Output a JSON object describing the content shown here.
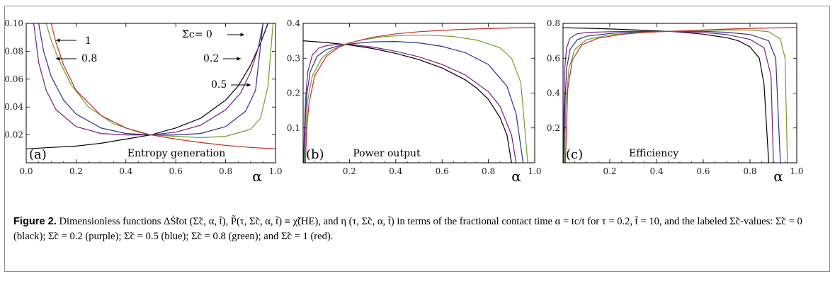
{
  "caption": {
    "label": "Figure 2.",
    "text": "Dimensionless functions ΔṠ̃tot (Σ̃c, α, t̃), P̃(τ, Σ̃c, α, t̃) ≡ χ̃(HE), and η (τ, Σ̃c, α, t̃) in terms of the fractional contact time α = tc/t for τ = 0.2, t̃ = 10, and the labeled Σ̃c-values: Σ̃c = 0 (black); Σ̃c = 0.2 (purple); Σ̃c = 0.5 (blue); Σ̃c = 0.8 (green); and Σ̃c = 1 (red)."
  },
  "colors": {
    "0": "#000000",
    "0.2": "#7a1f78",
    "0.5": "#2f2f8f",
    "0.8": "#6f9f2a",
    "1": "#c0302a"
  },
  "chart_data": [
    {
      "type": "line",
      "panel": "(a)",
      "title": "Entropy generation",
      "xlabel": "α",
      "xlim": [
        0,
        1
      ],
      "ylim": [
        0,
        0.1
      ],
      "xticks": [
        "0.0",
        "0.2",
        "0.4",
        "0.6",
        "0.8",
        "1.0"
      ],
      "yticks": [
        "0.02",
        "0.04",
        "0.06",
        "0.08",
        "0.10"
      ],
      "annotations": [
        "1",
        "0.8",
        "Σ̃c= 0",
        "0.2",
        "0.5"
      ],
      "series": [
        {
          "sigma": "0",
          "x": [
            0,
            0.1,
            0.2,
            0.3,
            0.4,
            0.5,
            0.6,
            0.7,
            0.8,
            0.85,
            0.9,
            0.94,
            0.97
          ],
          "y": [
            0.01,
            0.011,
            0.012,
            0.014,
            0.017,
            0.02,
            0.025,
            0.032,
            0.045,
            0.055,
            0.07,
            0.086,
            0.1
          ]
        },
        {
          "sigma": "0.2",
          "x": [
            0.03,
            0.05,
            0.08,
            0.12,
            0.2,
            0.3,
            0.4,
            0.5,
            0.6,
            0.7,
            0.8,
            0.86,
            0.9,
            0.93,
            0.95
          ],
          "y": [
            0.1,
            0.072,
            0.052,
            0.038,
            0.026,
            0.021,
            0.02,
            0.02,
            0.022,
            0.027,
            0.038,
            0.05,
            0.065,
            0.082,
            0.1
          ]
        },
        {
          "sigma": "0.5",
          "x": [
            0.05,
            0.07,
            0.1,
            0.15,
            0.2,
            0.3,
            0.4,
            0.5,
            0.6,
            0.7,
            0.8,
            0.88,
            0.92,
            0.95
          ],
          "y": [
            0.1,
            0.08,
            0.062,
            0.045,
            0.035,
            0.025,
            0.021,
            0.02,
            0.02,
            0.021,
            0.026,
            0.037,
            0.052,
            0.1
          ]
        },
        {
          "sigma": "0.8",
          "x": [
            0.08,
            0.1,
            0.13,
            0.18,
            0.25,
            0.35,
            0.45,
            0.5,
            0.6,
            0.7,
            0.8,
            0.9,
            0.94,
            0.97,
            0.99
          ],
          "y": [
            0.1,
            0.088,
            0.074,
            0.056,
            0.04,
            0.028,
            0.022,
            0.02,
            0.019,
            0.018,
            0.019,
            0.024,
            0.032,
            0.055,
            0.1
          ]
        },
        {
          "sigma": "1",
          "x": [
            0.1,
            0.12,
            0.15,
            0.2,
            0.3,
            0.4,
            0.5,
            0.6,
            0.7,
            0.8,
            0.9,
            1.0
          ],
          "y": [
            0.1,
            0.086,
            0.07,
            0.052,
            0.034,
            0.025,
            0.02,
            0.017,
            0.0145,
            0.0125,
            0.011,
            0.01
          ]
        }
      ]
    },
    {
      "type": "line",
      "panel": "(b)",
      "title": "Power output",
      "xlabel": "α",
      "xlim": [
        0,
        1
      ],
      "ylim": [
        0,
        0.4
      ],
      "xticks": [
        "0.2",
        "0.4",
        "0.6",
        "0.8",
        "1.0"
      ],
      "yticks": [
        "0.1",
        "0.2",
        "0.3",
        "0.4"
      ],
      "series": [
        {
          "sigma": "0",
          "x": [
            0,
            0.1,
            0.2,
            0.3,
            0.4,
            0.5,
            0.6,
            0.7,
            0.75,
            0.8,
            0.85,
            0.88,
            0.9
          ],
          "y": [
            0.35,
            0.345,
            0.338,
            0.328,
            0.314,
            0.296,
            0.272,
            0.238,
            0.214,
            0.182,
            0.13,
            0.08,
            0.0
          ]
        },
        {
          "sigma": "0.2",
          "x": [
            0.002,
            0.005,
            0.01,
            0.02,
            0.04,
            0.07,
            0.1,
            0.15,
            0.2,
            0.3,
            0.4,
            0.5,
            0.6,
            0.7,
            0.8,
            0.85,
            0.9,
            0.92
          ],
          "y": [
            0.0,
            0.08,
            0.18,
            0.26,
            0.31,
            0.33,
            0.336,
            0.34,
            0.34,
            0.332,
            0.32,
            0.304,
            0.282,
            0.252,
            0.204,
            0.162,
            0.08,
            0.0
          ]
        },
        {
          "sigma": "0.5",
          "x": [
            0.004,
            0.008,
            0.015,
            0.03,
            0.06,
            0.1,
            0.15,
            0.2,
            0.3,
            0.4,
            0.5,
            0.6,
            0.7,
            0.8,
            0.88,
            0.92,
            0.95
          ],
          "y": [
            0.0,
            0.1,
            0.19,
            0.26,
            0.305,
            0.325,
            0.335,
            0.341,
            0.347,
            0.348,
            0.344,
            0.334,
            0.316,
            0.282,
            0.22,
            0.14,
            0.0
          ]
        },
        {
          "sigma": "0.8",
          "x": [
            0.006,
            0.012,
            0.02,
            0.04,
            0.08,
            0.12,
            0.18,
            0.25,
            0.35,
            0.45,
            0.55,
            0.65,
            0.75,
            0.85,
            0.9,
            0.94,
            0.97
          ],
          "y": [
            0.0,
            0.1,
            0.18,
            0.25,
            0.3,
            0.322,
            0.34,
            0.352,
            0.362,
            0.366,
            0.366,
            0.362,
            0.352,
            0.33,
            0.3,
            0.23,
            0.0
          ]
        },
        {
          "sigma": "1",
          "x": [
            0.01,
            0.015,
            0.025,
            0.05,
            0.1,
            0.15,
            0.2,
            0.3,
            0.4,
            0.5,
            0.6,
            0.7,
            0.8,
            0.9,
            1.0
          ],
          "y": [
            0.0,
            0.09,
            0.17,
            0.25,
            0.305,
            0.33,
            0.344,
            0.36,
            0.37,
            0.376,
            0.38,
            0.383,
            0.385,
            0.387,
            0.388
          ]
        }
      ]
    },
    {
      "type": "line",
      "panel": "(c)",
      "title": "Efficiency",
      "xlabel": "α",
      "xlim": [
        0,
        1
      ],
      "ylim": [
        0,
        0.8
      ],
      "xticks": [
        "0.2",
        "0.4",
        "0.6",
        "0.8",
        "1.0"
      ],
      "yticks": [
        "0.2",
        "0.4",
        "0.6",
        "0.8"
      ],
      "series": [
        {
          "sigma": "0",
          "x": [
            0,
            0.1,
            0.2,
            0.3,
            0.4,
            0.45,
            0.5,
            0.6,
            0.7,
            0.75,
            0.8,
            0.84,
            0.86,
            0.88
          ],
          "y": [
            0.775,
            0.772,
            0.768,
            0.763,
            0.757,
            0.754,
            0.75,
            0.738,
            0.718,
            0.7,
            0.665,
            0.6,
            0.45,
            0.0
          ]
        },
        {
          "sigma": "0.2",
          "x": [
            0.002,
            0.004,
            0.008,
            0.015,
            0.03,
            0.06,
            0.1,
            0.2,
            0.3,
            0.45,
            0.6,
            0.7,
            0.8,
            0.86,
            0.89,
            0.9
          ],
          "y": [
            0.0,
            0.3,
            0.55,
            0.66,
            0.715,
            0.74,
            0.748,
            0.752,
            0.754,
            0.754,
            0.748,
            0.736,
            0.708,
            0.66,
            0.5,
            0.0
          ]
        },
        {
          "sigma": "0.5",
          "x": [
            0.004,
            0.008,
            0.015,
            0.03,
            0.06,
            0.1,
            0.2,
            0.3,
            0.45,
            0.6,
            0.7,
            0.8,
            0.88,
            0.91,
            0.93
          ],
          "y": [
            0.0,
            0.33,
            0.54,
            0.65,
            0.705,
            0.726,
            0.742,
            0.75,
            0.754,
            0.754,
            0.749,
            0.736,
            0.7,
            0.6,
            0.0
          ]
        },
        {
          "sigma": "0.8",
          "x": [
            0.006,
            0.012,
            0.025,
            0.05,
            0.1,
            0.2,
            0.3,
            0.45,
            0.6,
            0.7,
            0.8,
            0.88,
            0.93,
            0.95,
            0.96
          ],
          "y": [
            0.0,
            0.33,
            0.54,
            0.65,
            0.706,
            0.734,
            0.745,
            0.754,
            0.76,
            0.762,
            0.762,
            0.752,
            0.71,
            0.6,
            0.0
          ]
        },
        {
          "sigma": "1",
          "x": [
            0.01,
            0.02,
            0.04,
            0.08,
            0.15,
            0.25,
            0.35,
            0.45,
            0.6,
            0.7,
            0.8,
            0.9,
            1.0
          ],
          "y": [
            0.0,
            0.42,
            0.59,
            0.676,
            0.715,
            0.737,
            0.748,
            0.754,
            0.762,
            0.767,
            0.771,
            0.774,
            0.776
          ]
        }
      ]
    }
  ]
}
